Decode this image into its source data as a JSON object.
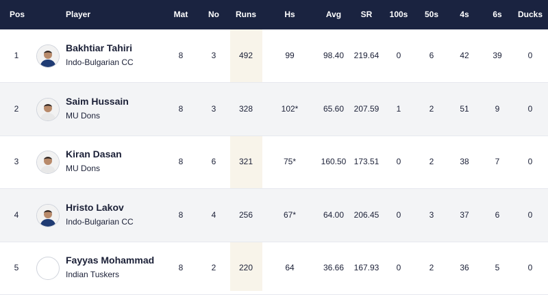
{
  "columns": [
    "Pos",
    "Player",
    "Mat",
    "No",
    "Runs",
    "Hs",
    "Avg",
    "SR",
    "100s",
    "50s",
    "4s",
    "6s",
    "Ducks"
  ],
  "rows": [
    {
      "pos": "1",
      "player": "Bakhtiar Tahiri",
      "team": "Indo-Bulgarian CC",
      "mat": "8",
      "no": "3",
      "runs": "492",
      "hs": "99",
      "avg": "98.40",
      "sr": "219.64",
      "hundreds": "0",
      "fifties": "6",
      "fours": "42",
      "sixes": "39",
      "ducks": "0",
      "avatar": "photo",
      "shirt": "#1f3b73"
    },
    {
      "pos": "2",
      "player": "Saim Hussain",
      "team": "MU Dons",
      "mat": "8",
      "no": "3",
      "runs": "328",
      "hs": "102*",
      "avg": "65.60",
      "sr": "207.59",
      "hundreds": "1",
      "fifties": "2",
      "fours": "51",
      "sixes": "9",
      "ducks": "0",
      "avatar": "photo",
      "shirt": "#e8e8e8"
    },
    {
      "pos": "3",
      "player": "Kiran Dasan",
      "team": "MU Dons",
      "mat": "8",
      "no": "6",
      "runs": "321",
      "hs": "75*",
      "avg": "160.50",
      "sr": "173.51",
      "hundreds": "0",
      "fifties": "2",
      "fours": "38",
      "sixes": "7",
      "ducks": "0",
      "avatar": "photo",
      "shirt": "#e8e8e8"
    },
    {
      "pos": "4",
      "player": "Hristo Lakov",
      "team": "Indo-Bulgarian CC",
      "mat": "8",
      "no": "4",
      "runs": "256",
      "hs": "67*",
      "avg": "64.00",
      "sr": "206.45",
      "hundreds": "0",
      "fifties": "3",
      "fours": "37",
      "sixes": "6",
      "ducks": "0",
      "avatar": "photo",
      "shirt": "#1f3b73"
    },
    {
      "pos": "5",
      "player": "Fayyas Mohammad",
      "team": "Indian Tuskers",
      "mat": "8",
      "no": "2",
      "runs": "220",
      "hs": "64",
      "avg": "36.66",
      "sr": "167.93",
      "hundreds": "0",
      "fifties": "2",
      "fours": "36",
      "sixes": "5",
      "ducks": "0",
      "avatar": "empty",
      "shirt": ""
    }
  ]
}
